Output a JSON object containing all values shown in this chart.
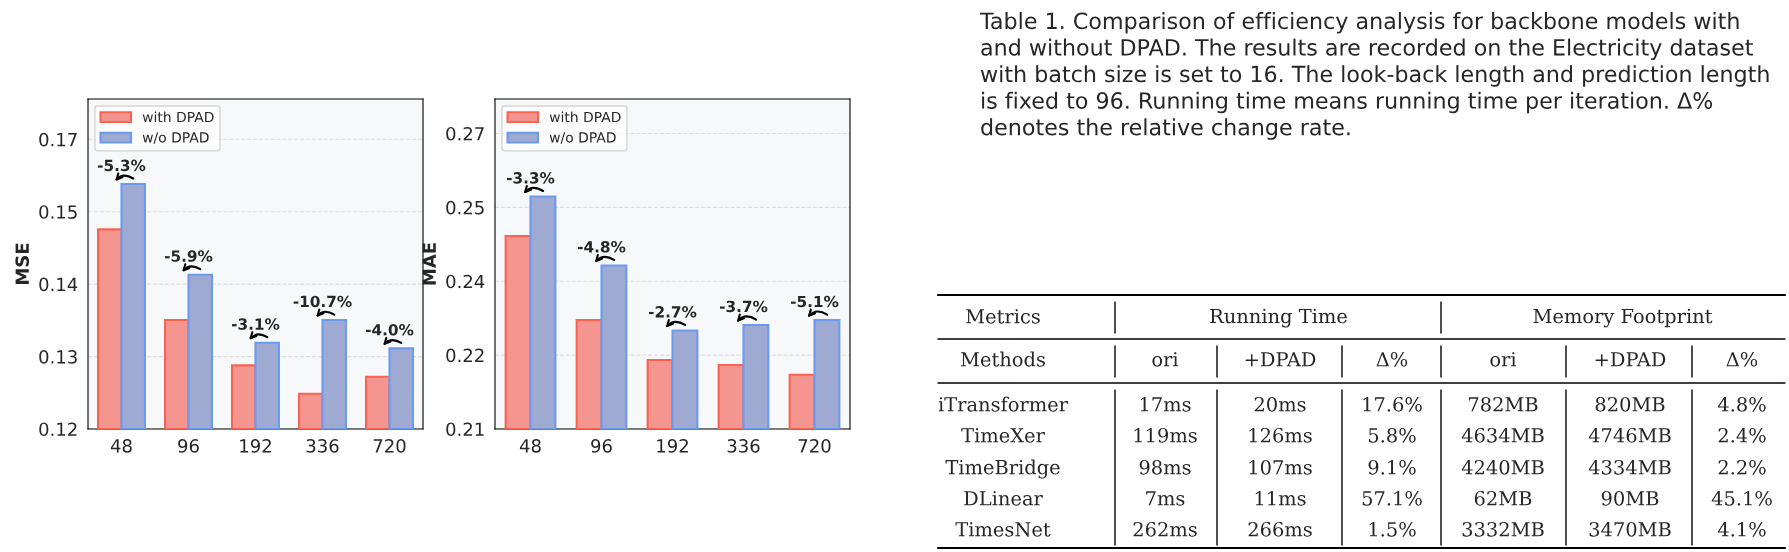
{
  "chart_data": [
    {
      "type": "bar",
      "ylabel": "MSE",
      "categories": [
        "48",
        "96",
        "192",
        "336",
        "720"
      ],
      "series": [
        {
          "name": "with DPAD",
          "color": "#f4968f",
          "values": [
            0.1517,
            0.1373,
            0.1301,
            0.1256,
            0.1283
          ]
        },
        {
          "name": "w/o DPAD",
          "color": "#9eaad2",
          "values": [
            0.1589,
            0.1445,
            0.1337,
            0.1373,
            0.1328
          ]
        }
      ],
      "ylim": [
        0.12,
        0.1724
      ],
      "yticks": [
        0.12,
        {
          "value": 0.1315,
          "label": "0.13"
        },
        {
          "value": 0.143,
          "label": "0.14"
        },
        {
          "value": 0.1545,
          "label": "0.15"
        },
        {
          "value": 0.166,
          "label": "0.17"
        }
      ],
      "annotations": [
        {
          "text": "-5.3%",
          "x": "48",
          "y": 0.1589
        },
        {
          "text": "-5.9%",
          "x": "96",
          "y": 0.1445
        },
        {
          "text": "-3.1%",
          "x": "192",
          "y": 0.1337
        },
        {
          "text": "-10.7%",
          "x": "336",
          "y": 0.1373
        },
        {
          "text": "-4.0%",
          "x": "720",
          "y": 0.1328
        }
      ],
      "grid": "y",
      "legend": "top left"
    },
    {
      "type": "bar",
      "ylabel": "MAE",
      "categories": [
        "48",
        "96",
        "192",
        "336",
        "720"
      ],
      "series": [
        {
          "name": "with DPAD",
          "color": "#f4968f",
          "values": [
            0.2492,
            0.2321,
            0.224,
            0.223,
            0.221
          ]
        },
        {
          "name": "w/o DPAD",
          "color": "#9eaad2",
          "values": [
            0.2572,
            0.2432,
            0.23,
            0.2311,
            0.2321
          ]
        }
      ],
      "ylim": [
        0.21,
        0.277
      ],
      "yticks": [
        0.21,
        {
          "value": 0.225,
          "label": "0.22"
        },
        0.24,
        {
          "value": 0.255,
          "label": "0.25"
        },
        0.27
      ],
      "annotations": [
        {
          "text": "-3.3%",
          "x": "48",
          "y": 0.2572
        },
        {
          "text": "-4.8%",
          "x": "96",
          "y": 0.2432
        },
        {
          "text": "-2.7%",
          "x": "192",
          "y": 0.23
        },
        {
          "text": "-3.7%",
          "x": "336",
          "y": 0.2311
        },
        {
          "text": "-5.1%",
          "x": "720",
          "y": 0.2321
        }
      ],
      "grid": "y",
      "legend": "top left"
    },
    {
      "type": "other",
      "annotations": [
        "Table 1. Comparison of efficiency analysis for backbone models with and without DPAD. The results are recorded on the Electricity dataset with batch size is set to 16. The look-back length and prediction length is fixed to 96. Running time means running time per iteration. Δ% denotes the relative change rate.",
        "Metrics",
        "Running Time",
        "Memory Footprint"
      ],
      "categories": [
        "Methods",
        "ori",
        "+DPAD",
        "Δ%",
        "ori",
        "+DPAD",
        "Δ%"
      ],
      "y_categories": [
        "iTransformer",
        "TimeXer",
        "TimeBridge",
        "DLinear",
        "TimesNet"
      ],
      "cell_labels": [
        [
          "17ms",
          "20ms",
          "17.6%",
          "782MB",
          "820MB",
          "4.8%"
        ],
        [
          "119ms",
          "126ms",
          "5.8%",
          "4634MB",
          "4746MB",
          "2.4%"
        ],
        [
          "98ms",
          "107ms",
          "9.1%",
          "4240MB",
          "4334MB",
          "2.2%"
        ],
        [
          "7ms",
          "11ms",
          "57.1%",
          "62MB",
          "90MB",
          "45.1%"
        ],
        [
          "262ms",
          "266ms",
          "1.5%",
          "3332MB",
          "3470MB",
          "4.1%"
        ]
      ]
    }
  ]
}
